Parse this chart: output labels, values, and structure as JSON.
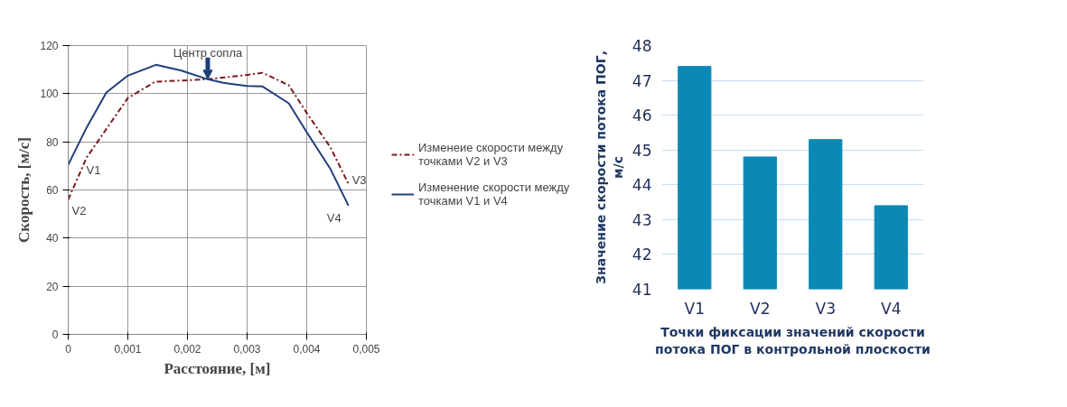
{
  "chart_data": [
    {
      "type": "line",
      "xlabel": "Расстояние, [м]",
      "ylabel": "Скорость, [м/с]",
      "grid": true,
      "legend": "right",
      "marker": "none",
      "xlim": [
        0,
        0.005
      ],
      "ylim": [
        0,
        120
      ],
      "xticks": [
        {
          "value": 0,
          "label": "0"
        },
        {
          "value": 0.001,
          "label": "0,001"
        },
        {
          "value": 0.002,
          "label": "0,002"
        },
        {
          "value": 0.003,
          "label": "0,003"
        },
        {
          "value": 0.004,
          "label": "0,004"
        },
        {
          "value": 0.005,
          "label": "0,005"
        }
      ],
      "yticks": [
        0,
        20,
        40,
        60,
        80,
        100,
        120
      ],
      "series": [
        {
          "name": "Изменеие скорости между\nточками V2 и V3",
          "color": "#7b1a1a",
          "line_style": "dashed",
          "x": [
            0,
            0.00031,
            0.00077,
            0.001,
            0.00146,
            0.002,
            0.00234,
            0.003,
            0.00326,
            0.0037,
            0.004,
            0.0044,
            0.0047
          ],
          "values": [
            56,
            73.5,
            90,
            98.2,
            105,
            105.6,
            106,
            107.8,
            108.7,
            103.5,
            92,
            77.6,
            62.5
          ]
        },
        {
          "name": "Изменение скорости между\nточками V1 и V4",
          "color": "#1f3f7a",
          "line_style": "solid",
          "x": [
            0,
            0.00031,
            0.00064,
            0.001,
            0.00147,
            0.0019,
            0.00234,
            0.0026,
            0.003,
            0.00326,
            0.0037,
            0.004,
            0.0044,
            0.0047
          ],
          "values": [
            70.5,
            86,
            100.5,
            107.5,
            112,
            109.6,
            106,
            104.5,
            103.2,
            103,
            96,
            84,
            68.6,
            53.5
          ]
        }
      ],
      "annotations": [
        {
          "text": "Центр сопла",
          "x": 0.00234,
          "y": 106
        },
        {
          "text": "V1",
          "x": 0,
          "y": 70.5
        },
        {
          "text": "V2",
          "x": 0,
          "y": 56
        },
        {
          "text": "V3",
          "x": 0.0047,
          "y": 62.5
        },
        {
          "text": "V4",
          "x": 0.0047,
          "y": 53.5
        }
      ]
    },
    {
      "type": "bar",
      "categories": [
        "V1",
        "V2",
        "V3",
        "V4"
      ],
      "values": [
        47.4,
        44.8,
        45.3,
        43.4
      ],
      "color": "#0a89b4",
      "ylabel": "Значение скорости потока ПОГ,\nм/с",
      "xlabel": "Точки фиксации значений скорости\nпотока ПОГ в контрольной плоскости",
      "ylim": [
        41,
        48
      ],
      "yticks": [
        41,
        42,
        43,
        44,
        45,
        46,
        47,
        48
      ],
      "grid": "y"
    }
  ]
}
